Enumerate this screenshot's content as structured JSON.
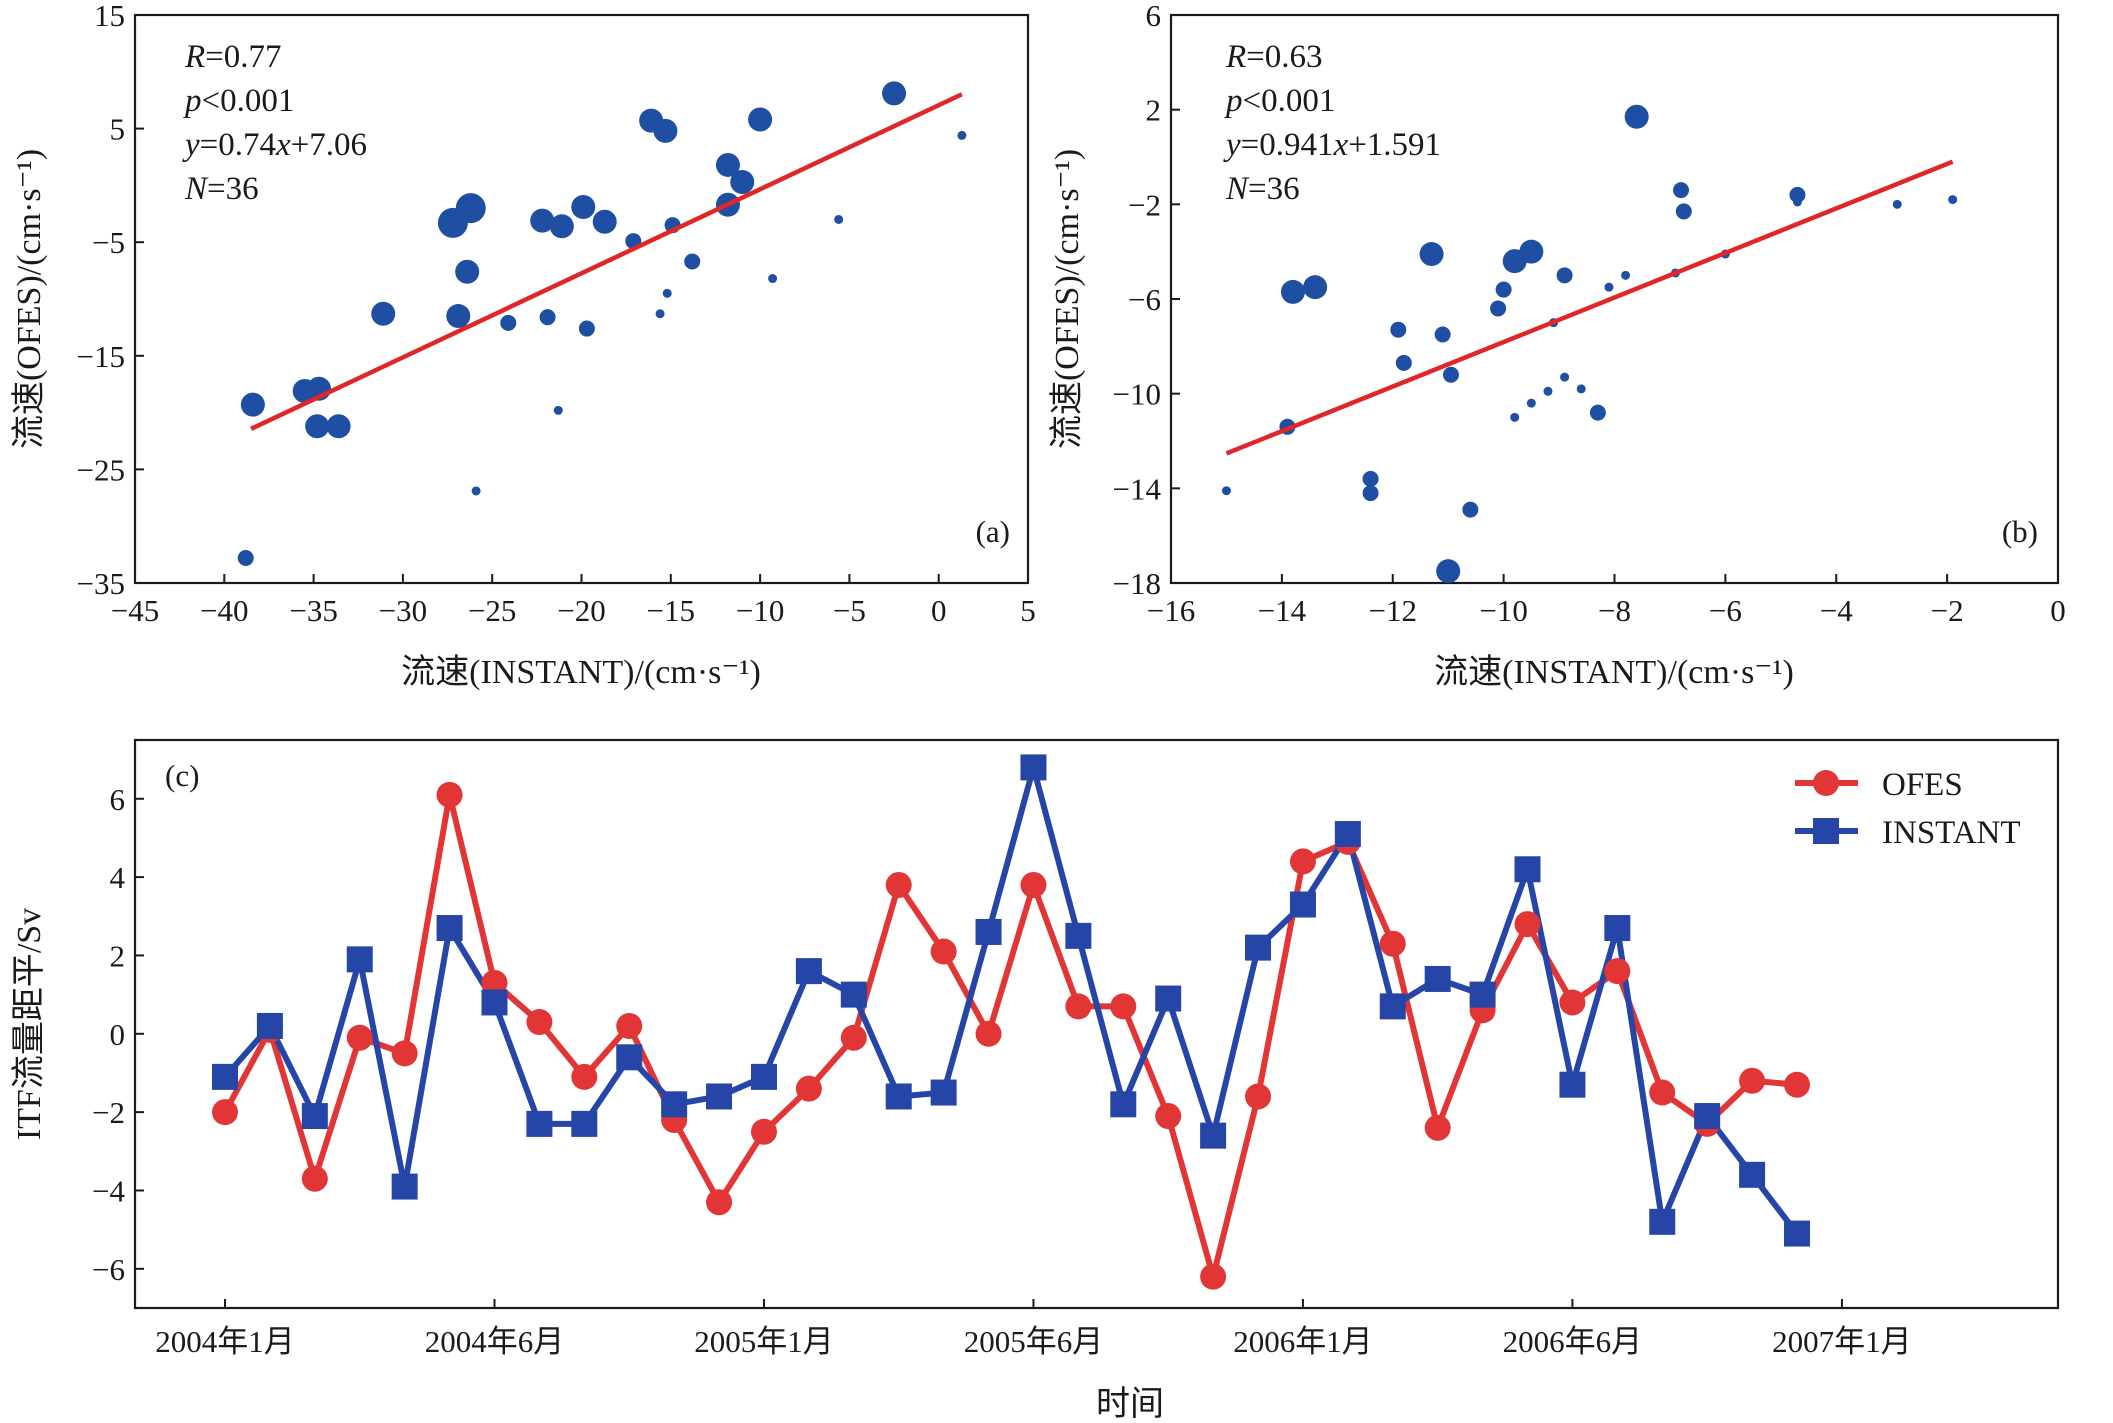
{
  "chart_data": [
    {
      "id": "a",
      "type": "scatter",
      "panel_label": "(a)",
      "xlabel": "流速(INSTANT)/(cm·s⁻¹)",
      "ylabel": "流速(OFES)/(cm·s⁻¹)",
      "xlim": [
        -45,
        5
      ],
      "ylim": [
        -35,
        15
      ],
      "xticks": [
        -45,
        -40,
        -35,
        -30,
        -25,
        -20,
        -15,
        -10,
        -5,
        0,
        5
      ],
      "yticks": [
        -35,
        -25,
        -15,
        -5,
        5,
        15
      ],
      "stats": [
        "R=0.77",
        "p<0.001",
        "y=0.74x+7.06",
        "N=36"
      ],
      "fit": {
        "slope": 0.74,
        "intercept": 7.06,
        "x_range": [
          -38.5,
          1.3
        ]
      },
      "marker_color": "#1f4fa3",
      "line_color": "#e02626",
      "points": [
        {
          "x": -38.4,
          "y": -19.3,
          "size": 3
        },
        {
          "x": -38.8,
          "y": -32.8,
          "size": 2
        },
        {
          "x": -35.5,
          "y": -18.1,
          "size": 3
        },
        {
          "x": -34.7,
          "y": -17.9,
          "size": 3
        },
        {
          "x": -34.8,
          "y": -21.2,
          "size": 3
        },
        {
          "x": -33.6,
          "y": -21.2,
          "size": 3
        },
        {
          "x": -31.1,
          "y": -11.3,
          "size": 3
        },
        {
          "x": -27.2,
          "y": -3.3,
          "size": 4
        },
        {
          "x": -26.9,
          "y": -11.5,
          "size": 3
        },
        {
          "x": -26.2,
          "y": -2.0,
          "size": 4
        },
        {
          "x": -26.4,
          "y": -7.6,
          "size": 3
        },
        {
          "x": -25.9,
          "y": -26.9,
          "size": 1
        },
        {
          "x": -24.1,
          "y": -12.1,
          "size": 2
        },
        {
          "x": -22.2,
          "y": -3.1,
          "size": 3
        },
        {
          "x": -21.9,
          "y": -11.6,
          "size": 2
        },
        {
          "x": -21.1,
          "y": -3.6,
          "size": 3
        },
        {
          "x": -21.3,
          "y": -19.8,
          "size": 1
        },
        {
          "x": -19.9,
          "y": -1.9,
          "size": 3
        },
        {
          "x": -19.7,
          "y": -12.6,
          "size": 2
        },
        {
          "x": -18.7,
          "y": -3.2,
          "size": 3
        },
        {
          "x": -17.1,
          "y": -4.9,
          "size": 2
        },
        {
          "x": -16.1,
          "y": 5.7,
          "size": 3
        },
        {
          "x": -15.3,
          "y": 4.8,
          "size": 3
        },
        {
          "x": -15.6,
          "y": -11.3,
          "size": 1
        },
        {
          "x": -15.2,
          "y": -9.5,
          "size": 1
        },
        {
          "x": -14.9,
          "y": -3.5,
          "size": 2
        },
        {
          "x": -13.8,
          "y": -6.7,
          "size": 2
        },
        {
          "x": -11.8,
          "y": 1.8,
          "size": 3
        },
        {
          "x": -11.8,
          "y": -1.7,
          "size": 3
        },
        {
          "x": -11.0,
          "y": 0.3,
          "size": 3
        },
        {
          "x": -10.0,
          "y": 5.8,
          "size": 3
        },
        {
          "x": -9.3,
          "y": -8.2,
          "size": 1
        },
        {
          "x": -5.6,
          "y": -3.0,
          "size": 1
        },
        {
          "x": -2.5,
          "y": 8.1,
          "size": 3
        },
        {
          "x": 1.3,
          "y": 4.4,
          "size": 1
        },
        {
          "x": -11.9,
          "y": -2.0,
          "size": 2
        }
      ]
    },
    {
      "id": "b",
      "type": "scatter",
      "panel_label": "(b)",
      "xlabel": "流速(INSTANT)/(cm·s⁻¹)",
      "ylabel": "流速(OFES)/(cm·s⁻¹)",
      "xlim": [
        -16,
        0
      ],
      "ylim": [
        -18,
        6
      ],
      "xticks": [
        -16,
        -14,
        -12,
        -10,
        -8,
        -6,
        -4,
        -2,
        0
      ],
      "yticks": [
        -18,
        -14,
        -10,
        -6,
        -2,
        2,
        6
      ],
      "stats": [
        "R=0.63",
        "p<0.001",
        "y=0.941x+1.591",
        "N=36"
      ],
      "fit": {
        "slope": 0.941,
        "intercept": 1.591,
        "x_range": [
          -15.0,
          -1.9
        ]
      },
      "marker_color": "#1f4fa3",
      "line_color": "#e02626",
      "points": [
        {
          "x": -15.0,
          "y": -14.1,
          "size": 1
        },
        {
          "x": -13.9,
          "y": -11.4,
          "size": 2
        },
        {
          "x": -13.8,
          "y": -5.7,
          "size": 3
        },
        {
          "x": -13.4,
          "y": -5.5,
          "size": 3
        },
        {
          "x": -12.4,
          "y": -13.6,
          "size": 2
        },
        {
          "x": -12.4,
          "y": -14.2,
          "size": 2
        },
        {
          "x": -11.9,
          "y": -7.3,
          "size": 2
        },
        {
          "x": -11.8,
          "y": -8.7,
          "size": 2
        },
        {
          "x": -11.3,
          "y": -4.1,
          "size": 3
        },
        {
          "x": -11.1,
          "y": -7.5,
          "size": 2
        },
        {
          "x": -10.95,
          "y": -9.2,
          "size": 2
        },
        {
          "x": -11.0,
          "y": -17.5,
          "size": 3
        },
        {
          "x": -10.6,
          "y": -14.9,
          "size": 2
        },
        {
          "x": -10.1,
          "y": -6.4,
          "size": 2
        },
        {
          "x": -10.0,
          "y": -5.6,
          "size": 2
        },
        {
          "x": -9.8,
          "y": -4.4,
          "size": 3
        },
        {
          "x": -9.8,
          "y": -11.0,
          "size": 1
        },
        {
          "x": -9.5,
          "y": -4.0,
          "size": 3
        },
        {
          "x": -9.5,
          "y": -10.4,
          "size": 1
        },
        {
          "x": -9.2,
          "y": -9.9,
          "size": 1
        },
        {
          "x": -9.1,
          "y": -7.0,
          "size": 1
        },
        {
          "x": -8.9,
          "y": -5.0,
          "size": 2
        },
        {
          "x": -8.9,
          "y": -9.3,
          "size": 1
        },
        {
          "x": -8.6,
          "y": -9.8,
          "size": 1
        },
        {
          "x": -8.3,
          "y": -10.8,
          "size": 2
        },
        {
          "x": -8.1,
          "y": -5.5,
          "size": 1
        },
        {
          "x": -7.8,
          "y": -5.0,
          "size": 1
        },
        {
          "x": -7.6,
          "y": 1.7,
          "size": 3
        },
        {
          "x": -6.9,
          "y": -4.9,
          "size": 1
        },
        {
          "x": -6.8,
          "y": -1.4,
          "size": 2
        },
        {
          "x": -6.75,
          "y": -2.3,
          "size": 2
        },
        {
          "x": -6.0,
          "y": -4.1,
          "size": 1
        },
        {
          "x": -4.7,
          "y": -1.6,
          "size": 2
        },
        {
          "x": -4.7,
          "y": -1.9,
          "size": 1
        },
        {
          "x": -2.9,
          "y": -2.0,
          "size": 1
        },
        {
          "x": -1.9,
          "y": -1.8,
          "size": 1
        }
      ]
    },
    {
      "id": "c",
      "type": "line",
      "panel_label": "(c)",
      "xlabel": "时间",
      "ylabel": "ITF流量距平/Sv",
      "ylim": [
        -7,
        7.5
      ],
      "yticks": [
        -6,
        -4,
        -2,
        0,
        2,
        4,
        6
      ],
      "x_start_month": "2004-01",
      "xticks": [
        {
          "label": "2004年1月",
          "month_index": 0
        },
        {
          "label": "2004年6月",
          "month_index": 6
        },
        {
          "label": "2005年1月",
          "month_index": 12
        },
        {
          "label": "2005年6月",
          "month_index": 18
        },
        {
          "label": "2006年1月",
          "month_index": 24
        },
        {
          "label": "2006年6月",
          "month_index": 30
        },
        {
          "label": "2007年1月",
          "month_index": 36
        }
      ],
      "legend_position": "top-right",
      "series": [
        {
          "name": "OFES",
          "color": "#e23636",
          "marker": "circle",
          "values": [
            -2.0,
            0.1,
            -3.7,
            -0.1,
            -0.5,
            6.1,
            1.3,
            0.3,
            -1.1,
            0.2,
            -2.2,
            -4.3,
            -2.5,
            -1.4,
            -0.1,
            3.8,
            2.1,
            0.0,
            3.8,
            0.7,
            0.7,
            -2.1,
            -6.2,
            -1.6,
            4.4,
            4.9,
            2.3,
            -2.4,
            0.6,
            2.8,
            0.8,
            1.6,
            -1.5,
            -2.3,
            -1.2,
            -1.3
          ]
        },
        {
          "name": "INSTANT",
          "color": "#2546a6",
          "marker": "square",
          "values": [
            -1.1,
            0.2,
            -2.1,
            1.9,
            -3.9,
            2.7,
            0.8,
            -2.3,
            -2.3,
            -0.6,
            -1.8,
            -1.6,
            -1.1,
            1.6,
            1.0,
            -1.6,
            -1.5,
            2.6,
            6.8,
            2.5,
            -1.8,
            0.9,
            -2.6,
            2.2,
            3.3,
            5.1,
            0.7,
            1.4,
            1.0,
            4.2,
            -1.3,
            2.7,
            -4.8,
            -2.1,
            -3.6,
            -5.1
          ]
        }
      ]
    }
  ]
}
